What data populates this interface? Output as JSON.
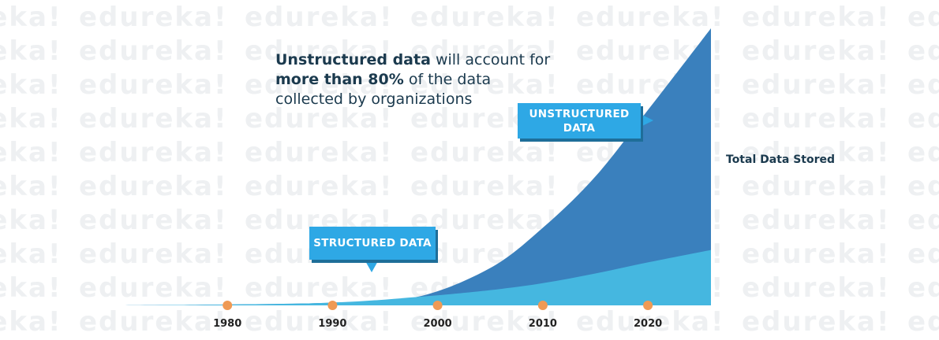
{
  "colors": {
    "unstructured": "#3a80bd",
    "structured": "#45b7e0",
    "callout": "#2ea8e5",
    "callout_shadow": "#1e6e99",
    "marker": "#ef9a55",
    "text_dark": "#1b3a4e",
    "watermark": "#eef0f2"
  },
  "watermark": {
    "text": "edureka!"
  },
  "headline": {
    "bold1": "Unstructured data",
    "text1": " will account for ",
    "bold2": "more than 80%",
    "text2": " of the data collected by organizations"
  },
  "callouts": {
    "unstructured_line1": "UNSTRUCTURED",
    "unstructured_line2": "DATA",
    "structured": "STRUCTURED DATA"
  },
  "side_label": "Total Data Stored",
  "chart_data": {
    "type": "area",
    "title": "",
    "xlabel": "",
    "ylabel": "",
    "stacked": true,
    "x_ticks": [
      "1980",
      "1990",
      "2000",
      "2010",
      "2020"
    ],
    "x_tick_values": [
      1980,
      1990,
      2000,
      2010,
      2020
    ],
    "xlim": [
      1970,
      2026
    ],
    "ylim": [
      0,
      100
    ],
    "grid": false,
    "legend": "none",
    "series": [
      {
        "name": "STRUCTURED DATA",
        "x": [
          1970,
          1980,
          1990,
          1998,
          2005,
          2010,
          2015,
          2020,
          2026
        ],
        "values": [
          0,
          0.3,
          1,
          3,
          5.5,
          8,
          11.5,
          15.5,
          20
        ]
      },
      {
        "name": "UNSTRUCTURED DATA",
        "x": [
          1970,
          1980,
          1990,
          1998,
          2005,
          2010,
          2015,
          2020,
          2026
        ],
        "values": [
          0,
          0,
          0,
          0,
          8,
          20,
          35,
          55,
          80
        ]
      }
    ]
  }
}
